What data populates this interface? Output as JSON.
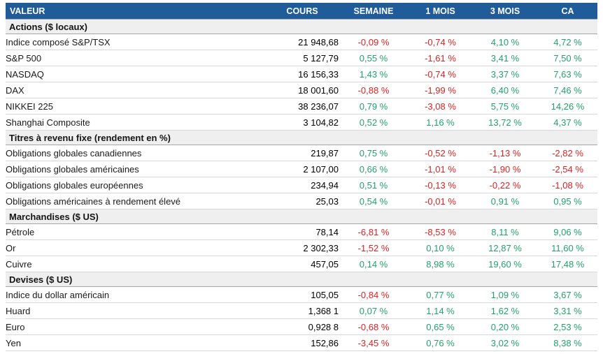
{
  "colors": {
    "header_bg": "#1F5C99",
    "header_text": "#FFFFFF",
    "positive": "#21A26B",
    "negative": "#DF2222",
    "section_bg": "#EFEFEF",
    "section_border": "#A6A6A6",
    "row_border": "#D8D8D8"
  },
  "table": {
    "columns": [
      {
        "key": "valeur",
        "label": "VALEUR"
      },
      {
        "key": "cours",
        "label": "COURS"
      },
      {
        "key": "semaine",
        "label": "SEMAINE"
      },
      {
        "key": "mois1",
        "label": "1 MOIS"
      },
      {
        "key": "mois3",
        "label": "3 MOIS"
      },
      {
        "key": "ca",
        "label": "CA"
      }
    ],
    "sections": [
      {
        "title": "Actions ($ locaux)",
        "rows": [
          {
            "label": "Indice composé S&P/TSX",
            "cours": "21 948,68",
            "pct": [
              "-0,09 %",
              "-0,74 %",
              "4,10 %",
              "4,72 %"
            ]
          },
          {
            "label": "S&P 500",
            "cours": "5 127,79",
            "pct": [
              "0,55 %",
              "-1,61 %",
              "3,41 %",
              "7,50 %"
            ]
          },
          {
            "label": "NASDAQ",
            "cours": "16 156,33",
            "pct": [
              "1,43 %",
              "-0,74 %",
              "3,37 %",
              "7,63 %"
            ]
          },
          {
            "label": "DAX",
            "cours": "18 001,60",
            "pct": [
              "-0,88 %",
              "-1,99 %",
              "6,40 %",
              "7,46 %"
            ]
          },
          {
            "label": "NIKKEI 225",
            "cours": "38 236,07",
            "pct": [
              "0,79 %",
              "-3,08 %",
              "5,75 %",
              "14,26 %"
            ]
          },
          {
            "label": "Shanghai Composite",
            "cours": "3 104,82",
            "pct": [
              "0,52 %",
              "1,16 %",
              "13,72 %",
              "4,37 %"
            ]
          }
        ]
      },
      {
        "title": "Titres à revenu fixe (rendement en %)",
        "rows": [
          {
            "label": "Obligations globales canadiennes",
            "cours": "219,87",
            "pct": [
              "0,75 %",
              "-0,52 %",
              "-1,13 %",
              "-2,82 %"
            ]
          },
          {
            "label": "Obligations globales américaines",
            "cours": "2 107,00",
            "pct": [
              "0,66 %",
              "-1,01 %",
              "-1,90 %",
              "-2,54 %"
            ]
          },
          {
            "label": "Obligations globales européennes",
            "cours": "234,94",
            "pct": [
              "0,51 %",
              "-0,13 %",
              "-0,22 %",
              "-1,08 %"
            ]
          },
          {
            "label": "Obligations américaines à rendement élevé",
            "cours": "25,03",
            "pct": [
              "0,54 %",
              "-0,01 %",
              "0,91 %",
              "0,95 %"
            ]
          }
        ]
      },
      {
        "title": "Marchandises ($ US)",
        "rows": [
          {
            "label": "Pétrole",
            "cours": "78,14",
            "pct": [
              "-6,81 %",
              "-8,53 %",
              "8,11 %",
              "9,06 %"
            ]
          },
          {
            "label": "Or",
            "cours": "2 302,33",
            "pct": [
              "-1,52 %",
              "0,10 %",
              "12,87 %",
              "11,60 %"
            ]
          },
          {
            "label": "Cuivre",
            "cours": "457,05",
            "pct": [
              "0,14 %",
              "8,98 %",
              "19,60 %",
              "17,48 %"
            ]
          }
        ]
      },
      {
        "title": "Devises ($ US)",
        "rows": [
          {
            "label": "Indice du dollar américain",
            "cours": "105,05",
            "pct": [
              "-0,84 %",
              "0,77 %",
              "1,09 %",
              "3,67 %"
            ]
          },
          {
            "label": "Huard",
            "cours": "1,368 1",
            "pct": [
              "0,07 %",
              "1,14 %",
              "1,62 %",
              "3,31 %"
            ]
          },
          {
            "label": "Euro",
            "cours": "0,928 8",
            "pct": [
              "-0,68 %",
              "0,65 %",
              "0,20 %",
              "2,53 %"
            ]
          },
          {
            "label": "Yen",
            "cours": "152,86",
            "pct": [
              "-3,45 %",
              "0,76 %",
              "3,02 %",
              "8,38 %"
            ]
          }
        ]
      }
    ]
  }
}
